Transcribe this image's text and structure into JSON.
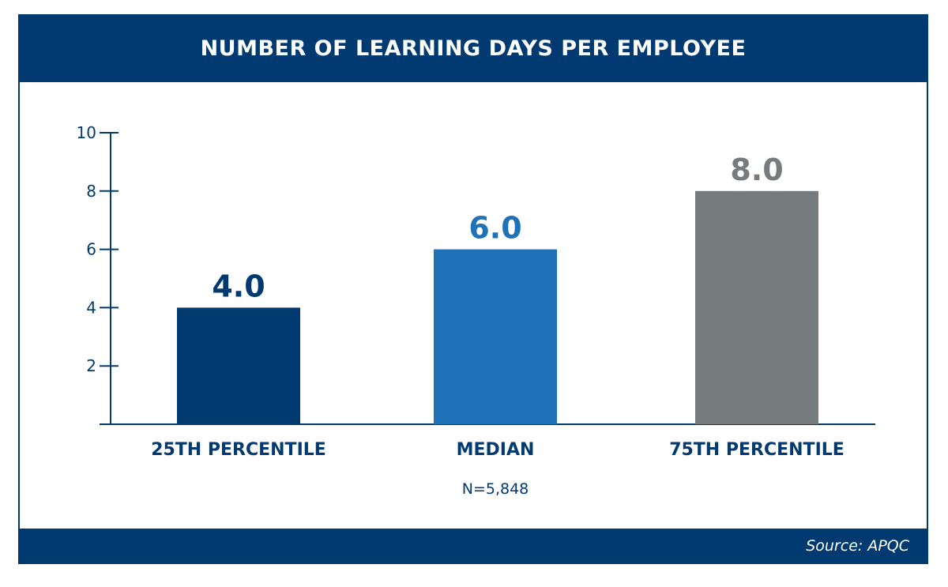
{
  "chart_data": {
    "type": "bar",
    "title": "NUMBER OF LEARNING DAYS PER EMPLOYEE",
    "categories": [
      "25TH PERCENTILE",
      "MEDIAN",
      "75TH PERCENTILE"
    ],
    "values": [
      4.0,
      6.0,
      8.0
    ],
    "value_labels": [
      "4.0",
      "6.0",
      "8.0"
    ],
    "bar_colors": [
      "#003a70",
      "#1f72b8",
      "#767b7e"
    ],
    "yticks": [
      "2",
      "4",
      "6",
      "8",
      "10"
    ],
    "ylim": [
      0,
      10
    ],
    "xlabel": "",
    "ylabel": "",
    "grid": false,
    "note": "N=5,848",
    "source": "Source: APQC"
  }
}
